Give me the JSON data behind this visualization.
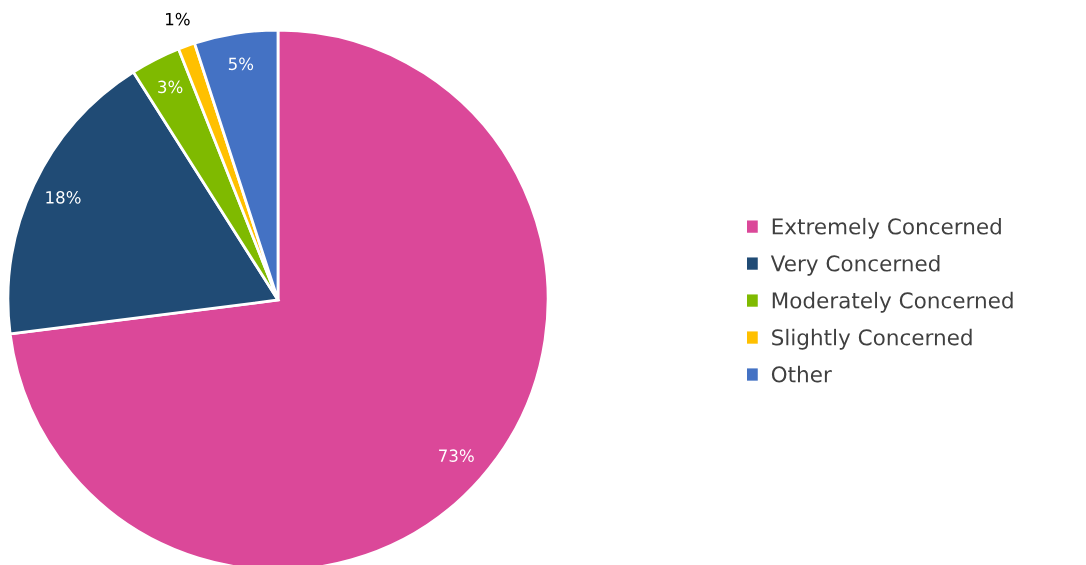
{
  "chart_data": {
    "type": "pie",
    "categories": [
      "Extremely Concerned",
      "Very Concerned",
      "Moderately Concerned",
      "Slightly Concerned",
      "Other"
    ],
    "values": [
      73,
      18,
      3,
      1,
      5
    ],
    "value_labels": [
      "73%",
      "18%",
      "3%",
      "1%",
      "5%"
    ],
    "colors": [
      "#db4899",
      "#204b75",
      "#7fba00",
      "#ffc000",
      "#4472c4"
    ],
    "legend": "right"
  }
}
